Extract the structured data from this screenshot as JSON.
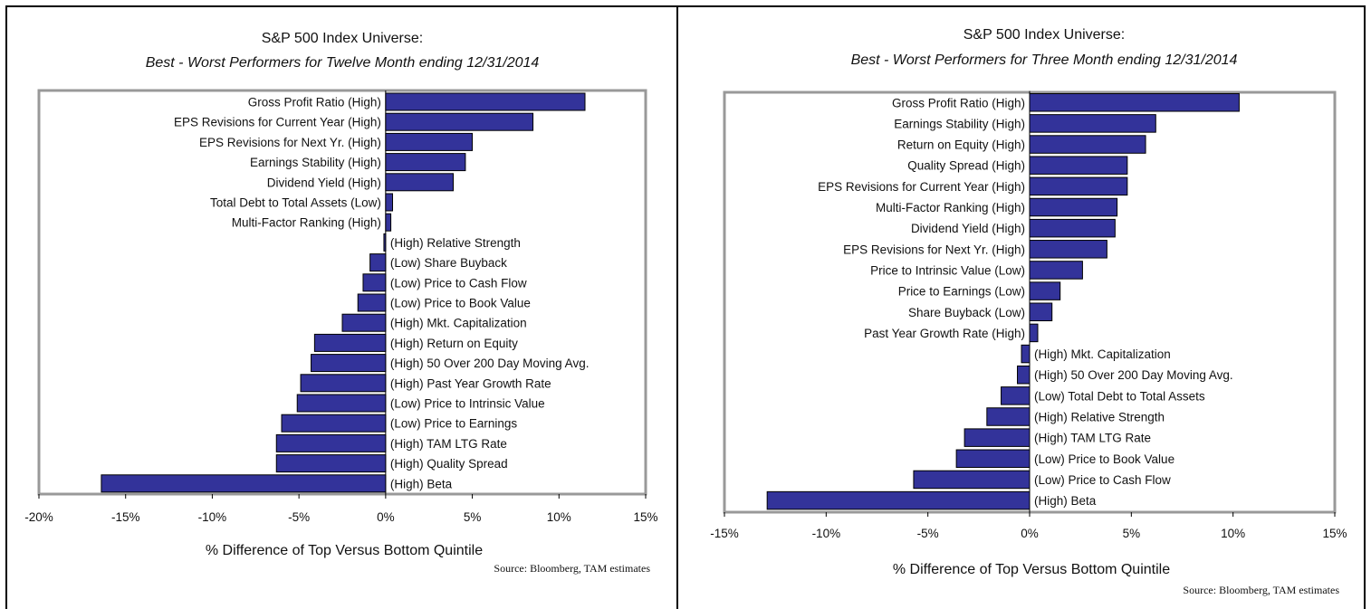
{
  "charts": [
    {
      "title_line1": "S&P 500 Index Universe:",
      "title_line2": "Best - Worst Performers for Twelve Month ending 12/31/2014",
      "xlabel": "% Difference of Top Versus Bottom Quintile",
      "source": "Source:  Bloomberg, TAM estimates"
    },
    {
      "title_line1": "S&P 500 Index Universe:",
      "title_line2": "Best - Worst Performers for Three Month ending 12/31/2014",
      "xlabel": "% Difference of Top Versus Bottom Quintile",
      "source": "Source:  Bloomberg, TAM estimates"
    }
  ],
  "colors": {
    "bar": "#33339a",
    "bar_stroke": "#000000",
    "frame": "#999999"
  },
  "chart_data": [
    {
      "type": "bar",
      "orientation": "horizontal",
      "title": "S&P 500 Index Universe: Best - Worst Performers for Twelve Month ending 12/31/2014",
      "xlabel": "% Difference of Top Versus Bottom Quintile",
      "ylabel": "",
      "xlim": [
        -20,
        15
      ],
      "xticks": [
        -20,
        -15,
        -10,
        -5,
        0,
        5,
        10,
        15
      ],
      "xtick_labels": [
        "-20%",
        "-15%",
        "-10%",
        "-5%",
        "0%",
        "5%",
        "10%",
        "15%"
      ],
      "grid": false,
      "categories": [
        "Gross Profit Ratio (High)",
        "EPS Revisions for Current Year (High)",
        "EPS Revisions for Next Yr. (High)",
        "Earnings Stability (High)",
        "Dividend Yield (High)",
        "Total Debt to Total Assets (Low)",
        "Multi-Factor Ranking (High)",
        "(High) Relative Strength",
        "(Low) Share Buyback",
        "(Low) Price to Cash Flow",
        "(Low) Price to Book Value",
        "(High) Mkt. Capitalization",
        "(High) Return on Equity",
        "(High) 50 Over 200 Day Moving Avg.",
        "(High) Past Year Growth Rate",
        "(Low) Price to Intrinsic Value",
        "(Low) Price to Earnings",
        "(High) TAM LTG Rate",
        "(High) Quality Spread",
        "(High) Beta"
      ],
      "values": [
        11.5,
        8.5,
        5.0,
        4.6,
        3.9,
        0.4,
        0.3,
        -0.1,
        -0.9,
        -1.3,
        -1.6,
        -2.5,
        -4.1,
        -4.3,
        -4.9,
        -5.1,
        -6.0,
        -6.3,
        -6.3,
        -16.4
      ]
    },
    {
      "type": "bar",
      "orientation": "horizontal",
      "title": "S&P 500 Index Universe: Best - Worst Performers for Three Month ending 12/31/2014",
      "xlabel": "% Difference of Top Versus Bottom Quintile",
      "ylabel": "",
      "xlim": [
        -15,
        15
      ],
      "xticks": [
        -15,
        -10,
        -5,
        0,
        5,
        10,
        15
      ],
      "xtick_labels": [
        "-15%",
        "-10%",
        "-5%",
        "0%",
        "5%",
        "10%",
        "15%"
      ],
      "grid": false,
      "categories": [
        "Gross Profit Ratio (High)",
        "Earnings Stability (High)",
        "Return on Equity (High)",
        "Quality Spread (High)",
        "EPS Revisions for Current Year (High)",
        "Multi-Factor Ranking (High)",
        "Dividend Yield (High)",
        "EPS Revisions for Next Yr. (High)",
        "Price to Intrinsic Value (Low)",
        "Price to Earnings (Low)",
        "Share Buyback (Low)",
        "Past Year Growth Rate (High)",
        "(High) Mkt. Capitalization",
        "(High) 50 Over 200 Day Moving Avg.",
        "(Low) Total Debt to Total Assets",
        "(High) Relative Strength",
        "(High) TAM LTG Rate",
        "(Low) Price to Book Value",
        "(Low) Price to Cash Flow",
        "(High) Beta"
      ],
      "values": [
        10.3,
        6.2,
        5.7,
        4.8,
        4.8,
        4.3,
        4.2,
        3.8,
        2.6,
        1.5,
        1.1,
        0.4,
        -0.4,
        -0.6,
        -1.4,
        -2.1,
        -3.2,
        -3.6,
        -5.7,
        -12.9
      ]
    }
  ]
}
